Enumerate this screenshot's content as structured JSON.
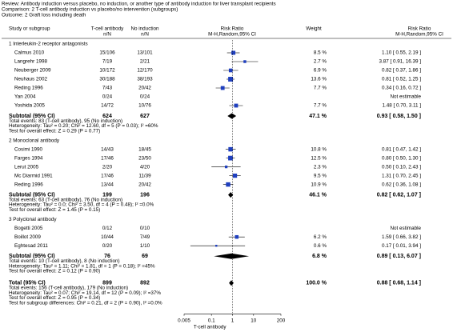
{
  "chart_data": {
    "type": "forest",
    "review": "Review: Antibody induction versus placebo, no induction, or another type of antibody induction for liver transplant recipients",
    "comparison": "Comparison: 2 T-cell antibody induction vs placebo/no intervention (subgroups)",
    "outcome": "Outcome: 2 Graft loss including death",
    "columns": {
      "study": "Study or subgroup",
      "exp": "T-cell antibody",
      "exp_sub": "n/N",
      "ctrl": "No induction",
      "ctrl_sub": "n/N",
      "plot": "Risk Ratio",
      "plot_sub": "M-H,Random,95% CI",
      "weight": "Weight",
      "ci": "Risk Ratio",
      "ci_sub": "M-H,Random,95% CI"
    },
    "xscale": "log",
    "xlim": [
      0.005,
      200
    ],
    "xticks": [
      0.005,
      0.1,
      1,
      10,
      200
    ],
    "xlabel_left": "T-cell antibody",
    "square_color": "#1f3fbf",
    "groups": [
      {
        "title": "1 Interleukin-2 receptor antagonists",
        "studies": [
          {
            "name": "Calmus 2010",
            "exp": "15/106",
            "ctrl": "13/101",
            "weight": 8.5,
            "weight_label": "8.5 %",
            "rr": 1.1,
            "lo": 0.55,
            "hi": 2.19,
            "ci_label": "1.10 [ 0.55, 2.19 ]"
          },
          {
            "name": "Langrehr 1998",
            "exp": "7/19",
            "ctrl": "2/21",
            "weight": 2.7,
            "weight_label": "2.7 %",
            "rr": 3.87,
            "lo": 0.91,
            "hi": 16.39,
            "ci_label": "3.87 [ 0.91, 16.39 ]"
          },
          {
            "name": "Neuberger 2009",
            "exp": "10/172",
            "ctrl": "12/170",
            "weight": 6.9,
            "weight_label": "6.9 %",
            "rr": 0.82,
            "lo": 0.37,
            "hi": 1.86,
            "ci_label": "0.82 [ 0.37, 1.86 ]"
          },
          {
            "name": "Neuhaus 2002",
            "exp": "30/188",
            "ctrl": "38/193",
            "weight": 13.6,
            "weight_label": "13.6 %",
            "rr": 0.81,
            "lo": 0.52,
            "hi": 1.25,
            "ci_label": "0.81 [ 0.52, 1.25 ]"
          },
          {
            "name": "Reding 1996",
            "exp": "7/43",
            "ctrl": "20/42",
            "weight": 7.7,
            "weight_label": "7.7 %",
            "rr": 0.34,
            "lo": 0.16,
            "hi": 0.72,
            "ci_label": "0.34 [ 0.16, 0.72 ]"
          },
          {
            "name": "Yan 2004",
            "exp": "0/24",
            "ctrl": "0/24",
            "ci_label": "Not estimable"
          },
          {
            "name": "Yoshida 2005",
            "exp": "14/72",
            "ctrl": "10/76",
            "weight": 7.7,
            "weight_label": "7.7 %",
            "rr": 1.48,
            "lo": 0.7,
            "hi": 3.11,
            "ci_label": "1.48 [ 0.70, 3.11 ]"
          }
        ],
        "subtotal": {
          "name": "Subtotal (95% CI)",
          "exp": "624",
          "ctrl": "627",
          "weight": 47.1,
          "weight_label": "47.1 %",
          "rr": 0.93,
          "lo": 0.58,
          "hi": 1.5,
          "ci_label": "0.93 [ 0.58, 1.50 ]"
        },
        "notes": [
          "Total events: 83 (T-cell antibody), 95 (No induction)",
          "Heterogeneity: Tau² = 0.20; Chi² = 12.60, df = 5 (P = 0.03); I² =60%",
          "Test for overall effect: Z = 0.29 (P = 0.77)"
        ]
      },
      {
        "title": "2 Monoclonal antibody",
        "studies": [
          {
            "name": "Cosimi 1990",
            "exp": "14/43",
            "ctrl": "18/45",
            "weight": 10.8,
            "weight_label": "10.8 %",
            "rr": 0.81,
            "lo": 0.47,
            "hi": 1.42,
            "ci_label": "0.81 [ 0.47, 1.42 ]"
          },
          {
            "name": "Farges 1994",
            "exp": "17/46",
            "ctrl": "23/50",
            "weight": 12.5,
            "weight_label": "12.5 %",
            "rr": 0.8,
            "lo": 0.5,
            "hi": 1.3,
            "ci_label": "0.80 [ 0.50, 1.30 ]"
          },
          {
            "name": "Lerut 2005",
            "exp": "2/20",
            "ctrl": "4/20",
            "weight": 2.3,
            "weight_label": "2.3 %",
            "rr": 0.5,
            "lo": 0.1,
            "hi": 2.43,
            "ci_label": "0.50 [ 0.10, 2.43 ]"
          },
          {
            "name": "Mc Diarmid 1991",
            "exp": "17/46",
            "ctrl": "11/39",
            "weight": 9.5,
            "weight_label": "9.5 %",
            "rr": 1.31,
            "lo": 0.7,
            "hi": 2.45,
            "ci_label": "1.31 [ 0.70, 2.45 ]"
          },
          {
            "name": "Reding 1996",
            "exp": "13/44",
            "ctrl": "20/42",
            "weight": 10.9,
            "weight_label": "10.9 %",
            "rr": 0.62,
            "lo": 0.36,
            "hi": 1.08,
            "ci_label": "0.62 [ 0.36, 1.08 ]"
          }
        ],
        "subtotal": {
          "name": "Subtotal (95% CI)",
          "exp": "199",
          "ctrl": "196",
          "weight": 46.1,
          "weight_label": "46.1 %",
          "rr": 0.82,
          "lo": 0.62,
          "hi": 1.07,
          "ci_label": "0.82 [ 0.62, 1.07 ]"
        },
        "notes": [
          "Total events: 63 (T-cell antibody), 76 (No induction)",
          "Heterogeneity: Tau² = 0.0; Chi² = 3.50, df = 4 (P = 0.48); I² =0.0%",
          "Test for overall effect: Z = 1.45 (P = 0.15)"
        ]
      },
      {
        "title": "3 Polyclonal antibody",
        "studies": [
          {
            "name": "Bogetti 2005",
            "exp": "0/12",
            "ctrl": "0/10",
            "ci_label": "Not estimable"
          },
          {
            "name": "Boillot 2009",
            "exp": "10/44",
            "ctrl": "7/49",
            "weight": 6.2,
            "weight_label": "6.2 %",
            "rr": 1.59,
            "lo": 0.66,
            "hi": 3.82,
            "ci_label": "1.59 [ 0.66, 3.82 ]"
          },
          {
            "name": "Eghtesad 2011",
            "exp": "0/20",
            "ctrl": "1/10",
            "weight": 0.6,
            "weight_label": "0.6 %",
            "rr": 0.17,
            "lo": 0.01,
            "hi": 3.94,
            "ci_label": "0.17 [ 0.01, 3.94 ]"
          }
        ],
        "subtotal": {
          "name": "Subtotal (95% CI)",
          "exp": "76",
          "ctrl": "69",
          "weight": 6.8,
          "weight_label": "6.8 %",
          "rr": 0.89,
          "lo": 0.13,
          "hi": 6.07,
          "ci_label": "0.89 [ 0.13, 6.07 ]"
        },
        "notes": [
          "Total events: 10 (T-cell antibody), 8 (No induction)",
          "Heterogeneity: Tau² = 1.11; Chi² = 1.81, df = 1 (P = 0.18); I² =45%",
          "Test for overall effect: Z = 0.12 (P = 0.90)"
        ]
      }
    ],
    "total": {
      "name": "Total (95% CI)",
      "exp": "899",
      "ctrl": "892",
      "weight": 100.0,
      "weight_label": "100.0 %",
      "rr": 0.88,
      "lo": 0.68,
      "hi": 1.14,
      "ci_label": "0.88 [ 0.68, 1.14 ]"
    },
    "total_notes": [
      "Total events: 156 (T-cell antibody), 179 (No induction)",
      "Heterogeneity: Tau² = 0.07; Chi² = 19.14, df = 12 (P = 0.09); I² =37%",
      "Test for overall effect: Z = 0.95 (P = 0.34)",
      "Test for subgroup differences: Chi² = 0.21, df = 2 (P = 0.90), I² =0.0%"
    ]
  }
}
